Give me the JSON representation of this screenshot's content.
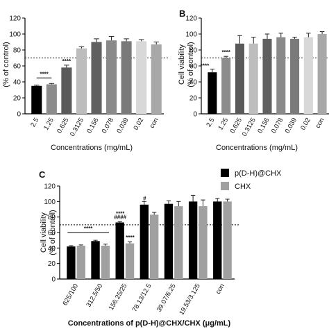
{
  "chart_data": [
    {
      "type": "bar",
      "panel_label": "",
      "ylabel": "(% of control)",
      "xlabel": "Concentrations (mg/mL)",
      "ylim": [
        0,
        120
      ],
      "yticks": [
        0,
        20,
        40,
        60,
        80,
        100,
        120
      ],
      "reference_line": 70,
      "categories": [
        "2.5",
        "1.25",
        "0.625",
        "0.3125",
        "0.156",
        "0.078",
        "0.039",
        "0.02",
        "con"
      ],
      "values": [
        35,
        37,
        58,
        82,
        90,
        92,
        91,
        91,
        87
      ],
      "errors": [
        1,
        1,
        3,
        2,
        4,
        5,
        3,
        2,
        3
      ],
      "colors": [
        "#000000",
        "#8c8c8c",
        "#5a5a5a",
        "#bdbdbd",
        "#606060",
        "#8a8a8a",
        "#7a7a7a",
        "#d8d8d8",
        "#a8a8a8"
      ],
      "annotations": [
        {
          "category_index": 0,
          "text": "****"
        },
        {
          "category_index": 2,
          "text": "****"
        }
      ]
    },
    {
      "type": "bar",
      "panel_label": "B",
      "ylabel": "Cell viability",
      "ylabel2": "(% of control)",
      "xlabel": "Concentrations (mg/mL)",
      "ylim": [
        0,
        120
      ],
      "yticks": [
        0,
        20,
        40,
        60,
        80,
        100,
        120
      ],
      "reference_line": 70,
      "categories": [
        "2.5",
        "1.25",
        "0.625",
        "0.3125",
        "0.156",
        "0.078",
        "0.039",
        "0.02",
        "con"
      ],
      "values": [
        52,
        70,
        88,
        88,
        94,
        96,
        94,
        96,
        100
      ],
      "errors": [
        4,
        2,
        10,
        8,
        6,
        5,
        2,
        5,
        3
      ],
      "colors": [
        "#000000",
        "#8c8c8c",
        "#5a5a5a",
        "#bdbdbd",
        "#606060",
        "#8a8a8a",
        "#7a7a7a",
        "#d8d8d8",
        "#a8a8a8"
      ],
      "annotations": [
        {
          "category_index": 0,
          "text": "****"
        },
        {
          "category_index": 1,
          "text": "****"
        }
      ]
    },
    {
      "type": "bar",
      "panel_label": "C",
      "ylabel": "Cell viability",
      "ylabel2": "(% of control)",
      "xlabel": "Concentrations of p(D-H)@CHX/CHX  (μg/mL)",
      "ylim": [
        0,
        120
      ],
      "yticks": [
        0,
        20,
        40,
        60,
        80,
        100,
        120
      ],
      "reference_line": 70,
      "categories": [
        "625/100",
        "312.5/50",
        "156.25/25",
        "78.13/12.5",
        "39.07/6.25",
        "19.53/3.125",
        "con"
      ],
      "series": [
        {
          "name": "p(D-H)@CHX",
          "color": "#000000",
          "values": [
            42,
            49,
            73,
            96,
            97,
            100,
            100
          ],
          "errors": [
            1,
            1,
            1,
            4,
            4,
            8,
            4
          ]
        },
        {
          "name": "CHX",
          "color": "#a0a0a0",
          "values": [
            43,
            43,
            46,
            83,
            94,
            94,
            100
          ],
          "errors": [
            1,
            2,
            2,
            3,
            6,
            8,
            3
          ]
        }
      ],
      "annotations": [
        {
          "category_index": 1,
          "text": "****"
        },
        {
          "category_index": 2,
          "text": "****"
        },
        {
          "category_index": 2,
          "text": "####"
        },
        {
          "category_index": 2,
          "text": "****"
        },
        {
          "category_index": 3,
          "text": "#"
        }
      ]
    }
  ]
}
